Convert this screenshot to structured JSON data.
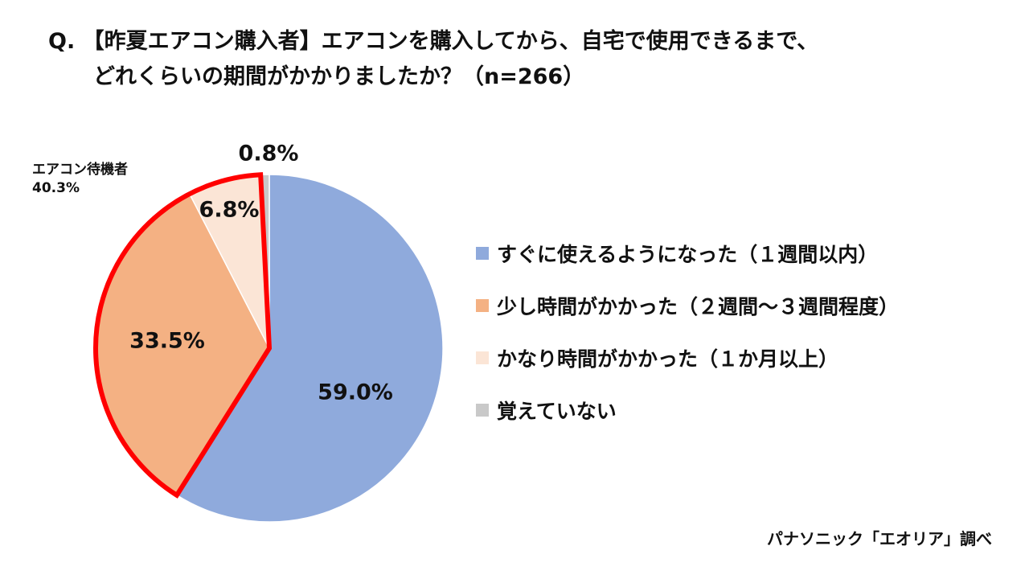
{
  "header": {
    "title_line1": "Q. 【昨夏エアコン購入者】エアコンを購入してから、自宅で使用できるまで、",
    "title_line2": "どれくらいの期間がかかりましたか？（n=266）"
  },
  "chart_data": {
    "type": "pie",
    "start_angle_deg": 0,
    "direction": "clockwise",
    "categories": [
      "すぐに使えるようになった（１週間以内）",
      "少し時間がかかった（２週間～３週間程度）",
      "かなり時間がかかった（１か月以上）",
      "覚えていない"
    ],
    "values": [
      59.0,
      33.5,
      6.8,
      0.8
    ],
    "data_labels": [
      "59.0%",
      "33.5%",
      "6.8%",
      "0.8%"
    ],
    "colors": [
      "#8faadc",
      "#f4b183",
      "#fbe5d6",
      "#c9c9c9"
    ],
    "legend_position": "right",
    "highlight": {
      "label": "エアコン待機者",
      "value_label": "40.3%",
      "indices": [
        1,
        2
      ],
      "stroke_color": "#ff0000"
    }
  },
  "source": "パナソニック「エオリア」調べ"
}
